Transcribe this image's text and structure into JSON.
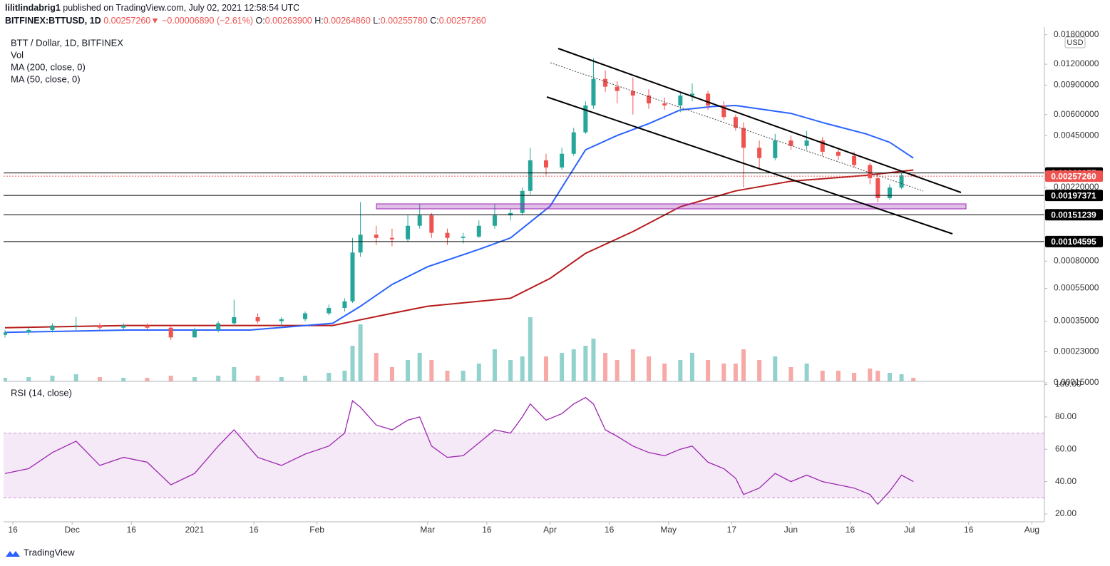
{
  "header": {
    "author": "lilitlindabrig1",
    "published": "published on TradingView.com, July 02, 2021 12:58:54 UTC",
    "symbol": "BITFINEX:BTTUSD, 1D",
    "last": "0.00257260",
    "arrow": "▼",
    "change": "−0.00006890 (−2.61%)",
    "o_label": "O:",
    "o": "0.00263900",
    "h_label": "H:",
    "h": "0.00264860",
    "l_label": "L:",
    "l": "0.00255780",
    "c_label": "C:",
    "c": "0.00257260"
  },
  "footer": {
    "brand": "TradingView"
  },
  "chart_data": [
    {
      "type": "candlestick",
      "title": "BTT / Dollar, 1D, BITFINEX",
      "currency": "USD",
      "volume_label": "Vol",
      "x": [
        "2020-11-14",
        "2020-11-20",
        "2020-11-26",
        "2020-12-02",
        "2020-12-08",
        "2020-12-14",
        "2020-12-20",
        "2020-12-26",
        "2021-01-01",
        "2021-01-07",
        "2021-01-11",
        "2021-01-17",
        "2021-01-23",
        "2021-01-29",
        "2021-02-04",
        "2021-02-08",
        "2021-02-10",
        "2021-02-12",
        "2021-02-16",
        "2021-02-20",
        "2021-02-24",
        "2021-02-27",
        "2021-03-02",
        "2021-03-06",
        "2021-03-10",
        "2021-03-14",
        "2021-03-18",
        "2021-03-22",
        "2021-03-25",
        "2021-03-27",
        "2021-03-31",
        "2021-04-04",
        "2021-04-07",
        "2021-04-10",
        "2021-04-12",
        "2021-04-15",
        "2021-04-18",
        "2021-04-22",
        "2021-04-26",
        "2021-04-30",
        "2021-05-04",
        "2021-05-07",
        "2021-05-11",
        "2021-05-15",
        "2021-05-18",
        "2021-05-20",
        "2021-05-24",
        "2021-05-28",
        "2021-06-01",
        "2021-06-05",
        "2021-06-09",
        "2021-06-13",
        "2021-06-17",
        "2021-06-21",
        "2021-06-23",
        "2021-06-26",
        "2021-06-29",
        "2021-07-02"
      ],
      "open": [
        0.00029,
        0.0003,
        0.00031,
        0.00033,
        0.00033,
        0.00032,
        0.00033,
        0.00032,
        0.00028,
        0.00031,
        0.00034,
        0.00037,
        0.00035,
        0.00036,
        0.00039,
        0.00042,
        0.00046,
        0.0009,
        0.00115,
        0.0011,
        0.00108,
        0.0013,
        0.0015,
        0.00118,
        0.0011,
        0.00112,
        0.0013,
        0.0015,
        0.00155,
        0.0021,
        0.0032,
        0.0029,
        0.0035,
        0.0047,
        0.0068,
        0.0098,
        0.0088,
        0.0083,
        0.0078,
        0.007,
        0.0068,
        0.0078,
        0.008,
        0.0068,
        0.0058,
        0.005,
        0.0038,
        0.0033,
        0.0042,
        0.0039,
        0.0042,
        0.0036,
        0.0034,
        0.003,
        0.0025,
        0.0019,
        0.0022,
        0.002639
      ],
      "high": [
        0.00031,
        0.00032,
        0.00034,
        0.00037,
        0.00034,
        0.00034,
        0.00034,
        0.00033,
        0.00032,
        0.00035,
        0.00047,
        0.00039,
        0.00037,
        0.0004,
        0.00044,
        0.00048,
        0.0011,
        0.0018,
        0.0013,
        0.00125,
        0.0015,
        0.00175,
        0.00155,
        0.00125,
        0.00118,
        0.0014,
        0.00175,
        0.00165,
        0.0022,
        0.0038,
        0.0035,
        0.0038,
        0.005,
        0.0072,
        0.013,
        0.011,
        0.0095,
        0.01,
        0.0085,
        0.0076,
        0.0082,
        0.0092,
        0.0083,
        0.0072,
        0.006,
        0.0054,
        0.0042,
        0.0046,
        0.0045,
        0.0048,
        0.0044,
        0.0038,
        0.0036,
        0.0031,
        0.0026,
        0.0023,
        0.0027,
        0.0026486
      ],
      "low": [
        0.00028,
        0.00029,
        0.0003,
        0.00031,
        0.00031,
        0.00031,
        0.00031,
        0.00027,
        0.00028,
        0.0003,
        0.00033,
        0.00034,
        0.00033,
        0.00035,
        0.00038,
        0.0004,
        0.00045,
        0.00085,
        0.001,
        0.00098,
        0.00105,
        0.00125,
        0.0011,
        0.001,
        0.00102,
        0.0011,
        0.00125,
        0.0014,
        0.0015,
        0.002,
        0.0026,
        0.0028,
        0.0034,
        0.0046,
        0.0065,
        0.0082,
        0.007,
        0.006,
        0.0065,
        0.0064,
        0.0062,
        0.0072,
        0.0064,
        0.0056,
        0.0048,
        0.0022,
        0.0028,
        0.0032,
        0.0037,
        0.0037,
        0.0034,
        0.0032,
        0.0029,
        0.0023,
        0.0018,
        0.00185,
        0.00215,
        0.0025578
      ],
      "close": [
        0.0003,
        0.00031,
        0.00033,
        0.00033,
        0.00032,
        0.00033,
        0.00032,
        0.00028,
        0.00031,
        0.00034,
        0.00037,
        0.00035,
        0.00036,
        0.00039,
        0.00042,
        0.00046,
        0.0009,
        0.00115,
        0.0011,
        0.00108,
        0.0013,
        0.0015,
        0.00118,
        0.0011,
        0.00112,
        0.0013,
        0.0015,
        0.00155,
        0.0021,
        0.0032,
        0.0029,
        0.0035,
        0.0047,
        0.0068,
        0.0098,
        0.0088,
        0.0083,
        0.0078,
        0.007,
        0.0068,
        0.0078,
        0.008,
        0.0068,
        0.0058,
        0.005,
        0.0038,
        0.0033,
        0.0042,
        0.0039,
        0.0042,
        0.0036,
        0.0034,
        0.003,
        0.0025,
        0.0019,
        0.0022,
        0.0026,
        0.0025726
      ],
      "volume": [
        5,
        6,
        8,
        10,
        6,
        5,
        5,
        8,
        6,
        8,
        20,
        8,
        6,
        8,
        12,
        15,
        50,
        80,
        40,
        20,
        30,
        40,
        30,
        15,
        15,
        25,
        45,
        30,
        35,
        90,
        35,
        40,
        45,
        50,
        60,
        40,
        30,
        45,
        35,
        25,
        30,
        40,
        30,
        25,
        25,
        45,
        30,
        35,
        20,
        25,
        15,
        15,
        12,
        18,
        15,
        12,
        10,
        5
      ],
      "up_color": "#26a69a",
      "down_color": "#ef5350",
      "series": [
        {
          "name": "MA (200, close, 0)",
          "color": "#b71c1c",
          "x": [
            "2020-11-14",
            "2020-12-15",
            "2021-01-15",
            "2021-02-05",
            "2021-02-20",
            "2021-03-01",
            "2021-03-22",
            "2021-04-01",
            "2021-04-10",
            "2021-04-22",
            "2021-05-04",
            "2021-05-18",
            "2021-06-01",
            "2021-06-20",
            "2021-07-02"
          ],
          "values": [
            0.00032,
            0.00033,
            0.00033,
            0.00033,
            0.00039,
            0.00043,
            0.00048,
            0.00063,
            0.00089,
            0.0012,
            0.00169,
            0.0021,
            0.0024,
            0.0026,
            0.0028
          ]
        },
        {
          "name": "MA (50, close, 0)",
          "color": "#2962ff",
          "x": [
            "2020-11-14",
            "2020-12-15",
            "2021-01-15",
            "2021-02-05",
            "2021-02-12",
            "2021-02-20",
            "2021-03-01",
            "2021-03-14",
            "2021-03-22",
            "2021-04-01",
            "2021-04-10",
            "2021-04-18",
            "2021-04-26",
            "2021-05-04",
            "2021-05-12",
            "2021-05-18",
            "2021-06-01",
            "2021-06-10",
            "2021-06-20",
            "2021-06-26",
            "2021-07-02"
          ],
          "values": [
            0.0003,
            0.00031,
            0.00031,
            0.00034,
            0.00043,
            0.00058,
            0.00074,
            0.00094,
            0.0011,
            0.0017,
            0.0037,
            0.0045,
            0.0053,
            0.0064,
            0.0067,
            0.0068,
            0.0061,
            0.0053,
            0.0046,
            0.0041,
            0.0033
          ]
        }
      ],
      "log_scale": true,
      "grid": false,
      "ylim": [
        0.00015,
        0.0196
      ],
      "yticks": [
        {
          "value": 0.018,
          "label": "0.01800000"
        },
        {
          "value": 0.012,
          "label": "0.01200000"
        },
        {
          "value": 0.009,
          "label": "0.00900000"
        },
        {
          "value": 0.006,
          "label": "0.00600000"
        },
        {
          "value": 0.0045,
          "label": "0.00450000"
        },
        {
          "value": 0.0022,
          "label": "0.00220000"
        },
        {
          "value": 0.0008,
          "label": "0.00080000"
        },
        {
          "value": 0.00055,
          "label": "0.00055000"
        },
        {
          "value": 0.00035,
          "label": "0.00035000"
        },
        {
          "value": 0.00023,
          "label": "0.00023000"
        },
        {
          "value": 0.00015,
          "label": "0.00015000"
        }
      ],
      "xlim": [
        "2020-11-14",
        "2021-08-04"
      ],
      "xticks": [
        {
          "value": "2020-11-16",
          "label": "16"
        },
        {
          "value": "2020-12-01",
          "label": "Dec"
        },
        {
          "value": "2020-12-16",
          "label": "16"
        },
        {
          "value": "2021-01-01",
          "label": "2021"
        },
        {
          "value": "2021-01-16",
          "label": "16"
        },
        {
          "value": "2021-02-01",
          "label": "Feb"
        },
        {
          "value": "2021-03-01",
          "label": "Mar"
        },
        {
          "value": "2021-03-16",
          "label": "16"
        },
        {
          "value": "2021-04-01",
          "label": "Apr"
        },
        {
          "value": "2021-04-16",
          "label": "16"
        },
        {
          "value": "2021-05-01",
          "label": "May"
        },
        {
          "value": "2021-05-17",
          "label": "17"
        },
        {
          "value": "2021-06-01",
          "label": "Jun"
        },
        {
          "value": "2021-06-16",
          "label": "16"
        },
        {
          "value": "2021-07-01",
          "label": "Jul"
        },
        {
          "value": "2021-07-16",
          "label": "16"
        },
        {
          "value": "2021-08-01",
          "label": "Aug"
        }
      ],
      "levels": [
        {
          "value": 0.00268957,
          "color": "#000000"
        },
        {
          "value": 0.0025726,
          "label": "0.00257260",
          "color": "#ef5350"
        },
        {
          "value": 0.00197371,
          "color": "#000000"
        },
        {
          "value": 0.00151239,
          "color": "#000000"
        },
        {
          "value": 0.00104595,
          "color": "#000000"
        }
      ]
    },
    {
      "type": "line",
      "title": "RSI (14, close)",
      "color": "#9c27b0",
      "x": [
        "2020-11-14",
        "2020-11-20",
        "2020-11-26",
        "2020-12-02",
        "2020-12-08",
        "2020-12-14",
        "2020-12-20",
        "2020-12-26",
        "2021-01-01",
        "2021-01-07",
        "2021-01-11",
        "2021-01-17",
        "2021-01-23",
        "2021-01-29",
        "2021-02-04",
        "2021-02-08",
        "2021-02-10",
        "2021-02-12",
        "2021-02-16",
        "2021-02-20",
        "2021-02-24",
        "2021-02-27",
        "2021-03-02",
        "2021-03-06",
        "2021-03-10",
        "2021-03-14",
        "2021-03-18",
        "2021-03-22",
        "2021-03-25",
        "2021-03-27",
        "2021-03-31",
        "2021-04-04",
        "2021-04-07",
        "2021-04-10",
        "2021-04-12",
        "2021-04-15",
        "2021-04-18",
        "2021-04-22",
        "2021-04-26",
        "2021-04-30",
        "2021-05-04",
        "2021-05-07",
        "2021-05-11",
        "2021-05-15",
        "2021-05-18",
        "2021-05-20",
        "2021-05-24",
        "2021-05-28",
        "2021-06-01",
        "2021-06-05",
        "2021-06-09",
        "2021-06-13",
        "2021-06-17",
        "2021-06-21",
        "2021-06-23",
        "2021-06-26",
        "2021-06-29",
        "2021-07-02"
      ],
      "values": [
        45,
        48,
        58,
        65,
        50,
        55,
        52,
        38,
        45,
        62,
        72,
        55,
        50,
        57,
        62,
        70,
        90,
        86,
        75,
        72,
        78,
        80,
        62,
        55,
        56,
        64,
        72,
        70,
        80,
        88,
        78,
        82,
        88,
        92,
        88,
        72,
        68,
        62,
        58,
        56,
        60,
        62,
        52,
        48,
        42,
        32,
        36,
        45,
        40,
        44,
        40,
        38,
        36,
        32,
        26,
        34,
        44,
        40
      ],
      "ylim": [
        16,
        102
      ],
      "yticks": [
        {
          "value": 100,
          "label": "100.00"
        },
        {
          "value": 80,
          "label": "80.00"
        },
        {
          "value": 60,
          "label": "60.00"
        },
        {
          "value": 40,
          "label": "40.00"
        },
        {
          "value": 20,
          "label": "20.00"
        }
      ],
      "band": [
        30,
        70
      ],
      "band_color": "#9c27b0"
    }
  ]
}
